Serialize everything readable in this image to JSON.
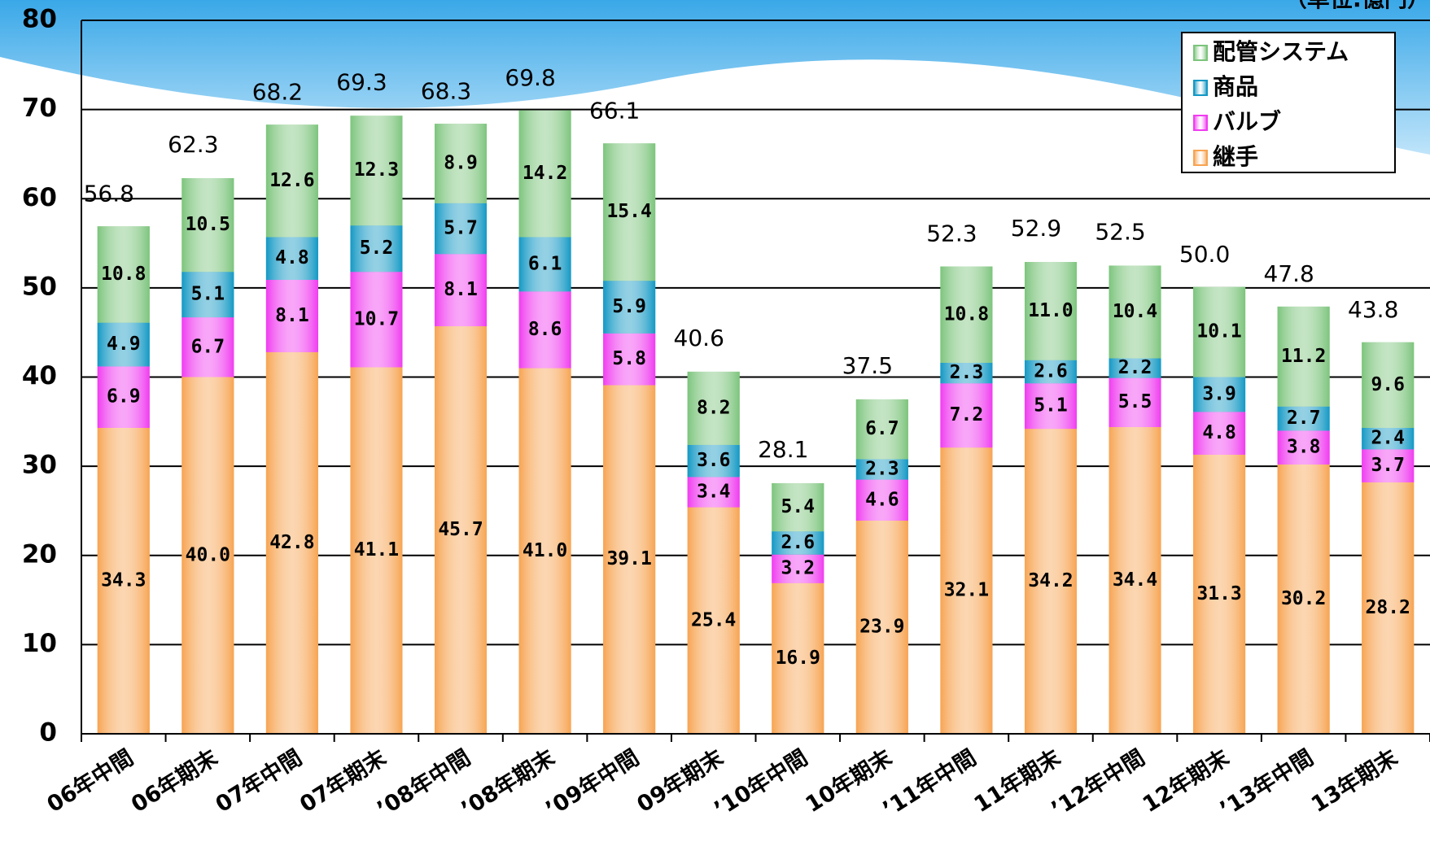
{
  "chart_data": {
    "type": "stacked-bar",
    "unit": "（単位:億円）",
    "categories": [
      "06年中間",
      "06年期末",
      "07年中間",
      "07年期末",
      "’08年中間",
      "’08年期末",
      "’09年中間",
      "09年期末",
      "’10年中間",
      "10年期末",
      "’11年中間",
      "11年期末",
      "’12年中間",
      "12年期末",
      "’13年中間",
      "13年期末"
    ],
    "series": [
      {
        "name": "継手",
        "color": "#f7a452",
        "values": [
          34.3,
          40.0,
          42.8,
          41.1,
          45.7,
          41.0,
          39.1,
          25.4,
          16.9,
          23.9,
          32.1,
          34.2,
          34.4,
          31.3,
          30.2,
          28.2
        ],
        "value_labels": [
          "34.3",
          "40.0",
          "42.8",
          "41.1",
          "45.7",
          "41.0",
          "39.1",
          "25.4",
          "16.9",
          "23.9",
          "32.1",
          "34.2",
          "34.4",
          "31.3",
          "30.2",
          "28.2"
        ]
      },
      {
        "name": "バルブ",
        "color": "#f03cf0",
        "values": [
          6.9,
          6.7,
          8.1,
          10.7,
          8.1,
          8.6,
          5.8,
          3.4,
          3.2,
          4.6,
          7.2,
          5.1,
          5.5,
          4.8,
          3.8,
          3.7
        ],
        "value_labels": [
          "6.9",
          "6.7",
          "8.1",
          "10.7",
          "8.1",
          "8.6",
          "5.8",
          "3.4",
          "3.2",
          "4.6",
          "7.2",
          "5.1",
          "5.5",
          "4.8",
          "3.8",
          "3.7"
        ]
      },
      {
        "name": "商品",
        "color": "#1398c4",
        "values": [
          4.9,
          5.1,
          4.8,
          5.2,
          5.7,
          6.1,
          5.9,
          3.6,
          2.6,
          2.3,
          2.3,
          2.6,
          2.2,
          3.9,
          2.7,
          2.4
        ],
        "value_labels": [
          "4.9",
          "5.1",
          "4.8",
          "5.2",
          "5.7",
          "6.1",
          "5.9",
          "3.6",
          "2.6",
          "2.3",
          "2.3",
          "2.6",
          "2.2",
          "3.9",
          "2.7",
          "2.4"
        ]
      },
      {
        "name": "配管システム",
        "color": "#7cc47c",
        "values": [
          10.8,
          10.5,
          12.6,
          12.3,
          8.9,
          14.2,
          15.4,
          8.2,
          5.4,
          6.7,
          10.8,
          11.0,
          10.4,
          10.1,
          11.2,
          9.6
        ],
        "value_labels": [
          "10.8",
          "10.5",
          "12.6",
          "12.3",
          "8.9",
          "14.2",
          "15.4",
          "8.2",
          "5.4",
          "6.7",
          "10.8",
          "11.0",
          "10.4",
          "10.1",
          "11.2",
          "9.6"
        ]
      }
    ],
    "totals": {
      "values": [
        56.8,
        62.3,
        68.2,
        69.3,
        68.3,
        69.8,
        66.1,
        40.6,
        28.1,
        37.5,
        52.3,
        52.9,
        52.5,
        50.0,
        47.8,
        43.8
      ],
      "value_labels": [
        "56.8",
        "62.3",
        "68.2",
        "69.3",
        "68.3",
        "69.8",
        "66.1",
        "40.6",
        "28.1",
        "37.5",
        "52.3",
        "52.9",
        "52.5",
        "50.0",
        "47.8",
        "43.8"
      ]
    },
    "ylim": [
      0,
      80
    ],
    "yticks": [
      0,
      10,
      20,
      30,
      40,
      50,
      60,
      70,
      80
    ],
    "grid": true,
    "legend": "top-right"
  }
}
